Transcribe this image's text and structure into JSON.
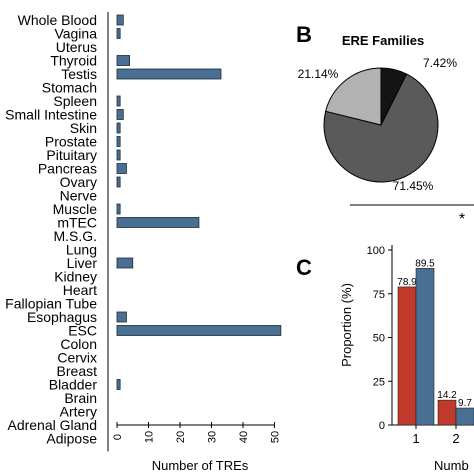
{
  "chart_data": [
    {
      "type": "bar",
      "orientation": "horizontal",
      "categories": [
        "Whole Blood",
        "Vagina",
        "Uterus",
        "Thyroid",
        "Testis",
        "Stomach",
        "Spleen",
        "Small Intestine",
        "Skin",
        "Prostate",
        "Pituitary",
        "Pancreas",
        "Ovary",
        "Nerve",
        "Muscle",
        "mTEC",
        "M.S.G.",
        "Lung",
        "Liver",
        "Kidney",
        "Heart",
        "Fallopian Tube",
        "Esophagus",
        "ESC",
        "Colon",
        "Cervix",
        "Breast",
        "Bladder",
        "Brain",
        "Artery",
        "Adrenal Gland",
        "Adipose"
      ],
      "values": [
        2,
        1,
        0,
        4,
        33,
        0,
        1,
        2,
        1,
        1,
        1,
        3,
        1,
        0,
        1,
        26,
        0,
        0,
        5,
        0,
        0,
        0,
        3,
        52,
        0,
        0,
        0,
        1,
        0,
        0,
        0,
        0
      ],
      "xlabel": "Number of TREs",
      "xticks": [
        "0",
        "10",
        "20",
        "30",
        "40",
        "50"
      ],
      "xlim": [
        0,
        53
      ],
      "colors": {
        "bar": "#4a6f94",
        "edge": "#1e2a38"
      }
    },
    {
      "type": "pie",
      "panel": "B",
      "title": "ERE Families",
      "slices": [
        {
          "value": 7.42,
          "label": "7.42%",
          "color": "#141414"
        },
        {
          "value": 71.45,
          "label": "71.45%",
          "color": "#5a5a5a"
        },
        {
          "value": 21.14,
          "label": "21.14%",
          "color": "#b2b2b2"
        }
      ],
      "annotation": "*"
    },
    {
      "type": "bar",
      "panel": "C",
      "categories": [
        "1",
        "2"
      ],
      "series": [
        {
          "values": [
            78.9,
            14.2
          ],
          "labels": [
            "78.9",
            "14.2"
          ],
          "color": "#c0392b"
        },
        {
          "values": [
            89.5,
            9.7
          ],
          "labels": [
            "89.5",
            "9.7"
          ],
          "color": "#4a6f94"
        }
      ],
      "ylabel": "Proportion (%)",
      "yticks": [
        "0",
        "25",
        "50",
        "75",
        "100"
      ],
      "ylim": [
        0,
        100
      ],
      "xlabel": "Numb"
    }
  ]
}
